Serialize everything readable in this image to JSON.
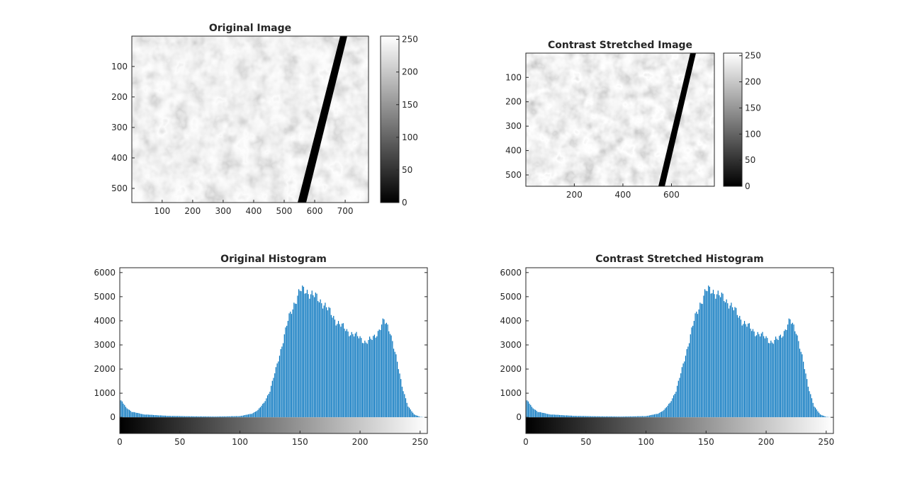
{
  "chart_data": [
    {
      "type": "heatmap",
      "title": "Original Image",
      "colormap": "gray",
      "xticks": [
        100,
        200,
        300,
        400,
        500,
        600,
        700
      ],
      "yticks": [
        100,
        200,
        300,
        400,
        500
      ],
      "xlim": [
        0.5,
        776.5
      ],
      "ylim": [
        0.5,
        546.5
      ],
      "colorbar": {
        "ticks": [
          0,
          50,
          100,
          150,
          200,
          250
        ],
        "lim": [
          0,
          255
        ]
      }
    },
    {
      "type": "heatmap",
      "title": "Contrast Stretched Image",
      "colormap": "gray",
      "xticks": [
        200,
        400,
        600
      ],
      "yticks": [
        100,
        200,
        300,
        400,
        500
      ],
      "xlim": [
        0.5,
        776.5
      ],
      "ylim": [
        0.5,
        546.5
      ],
      "colorbar": {
        "ticks": [
          0,
          50,
          100,
          150,
          200,
          250
        ],
        "lim": [
          0,
          255
        ]
      }
    },
    {
      "type": "bar",
      "title": "Original Histogram",
      "color": "#0072BD",
      "xticks": [
        0,
        50,
        100,
        150,
        200,
        250
      ],
      "yticks": [
        0,
        1000,
        2000,
        3000,
        4000,
        5000,
        6000
      ],
      "xlim": [
        0,
        256
      ],
      "ylim": [
        -200,
        6200
      ],
      "grayscale_bar": true,
      "curve": [
        [
          0,
          700
        ],
        [
          2,
          650
        ],
        [
          5,
          420
        ],
        [
          10,
          230
        ],
        [
          20,
          120
        ],
        [
          40,
          60
        ],
        [
          60,
          40
        ],
        [
          80,
          30
        ],
        [
          100,
          50
        ],
        [
          110,
          150
        ],
        [
          115,
          300
        ],
        [
          120,
          600
        ],
        [
          125,
          1100
        ],
        [
          130,
          2000
        ],
        [
          135,
          3000
        ],
        [
          140,
          4000
        ],
        [
          145,
          4700
        ],
        [
          150,
          5250
        ],
        [
          155,
          5250
        ],
        [
          160,
          5100
        ],
        [
          170,
          4700
        ],
        [
          180,
          4000
        ],
        [
          190,
          3550
        ],
        [
          200,
          3300
        ],
        [
          205,
          3100
        ],
        [
          210,
          3250
        ],
        [
          215,
          3550
        ],
        [
          220,
          4000
        ],
        [
          225,
          3600
        ],
        [
          230,
          2500
        ],
        [
          235,
          1300
        ],
        [
          240,
          450
        ],
        [
          245,
          120
        ],
        [
          250,
          20
        ],
        [
          255,
          0
        ]
      ]
    },
    {
      "type": "bar",
      "title": "Contrast Stretched Histogram",
      "color": "#0072BD",
      "xticks": [
        0,
        50,
        100,
        150,
        200,
        250
      ],
      "yticks": [
        0,
        1000,
        2000,
        3000,
        4000,
        5000,
        6000
      ],
      "xlim": [
        0,
        256
      ],
      "ylim": [
        -200,
        6200
      ],
      "grayscale_bar": true,
      "curve": [
        [
          0,
          700
        ],
        [
          2,
          650
        ],
        [
          5,
          420
        ],
        [
          10,
          230
        ],
        [
          20,
          120
        ],
        [
          40,
          60
        ],
        [
          60,
          40
        ],
        [
          80,
          30
        ],
        [
          100,
          50
        ],
        [
          110,
          150
        ],
        [
          115,
          300
        ],
        [
          120,
          600
        ],
        [
          125,
          1100
        ],
        [
          130,
          2000
        ],
        [
          135,
          3000
        ],
        [
          140,
          4000
        ],
        [
          145,
          4700
        ],
        [
          150,
          5250
        ],
        [
          155,
          5250
        ],
        [
          160,
          5100
        ],
        [
          170,
          4700
        ],
        [
          180,
          4000
        ],
        [
          190,
          3550
        ],
        [
          200,
          3300
        ],
        [
          205,
          3100
        ],
        [
          210,
          3250
        ],
        [
          215,
          3550
        ],
        [
          220,
          4000
        ],
        [
          225,
          3600
        ],
        [
          230,
          2500
        ],
        [
          235,
          1300
        ],
        [
          240,
          450
        ],
        [
          245,
          120
        ],
        [
          250,
          20
        ],
        [
          255,
          0
        ]
      ]
    }
  ]
}
